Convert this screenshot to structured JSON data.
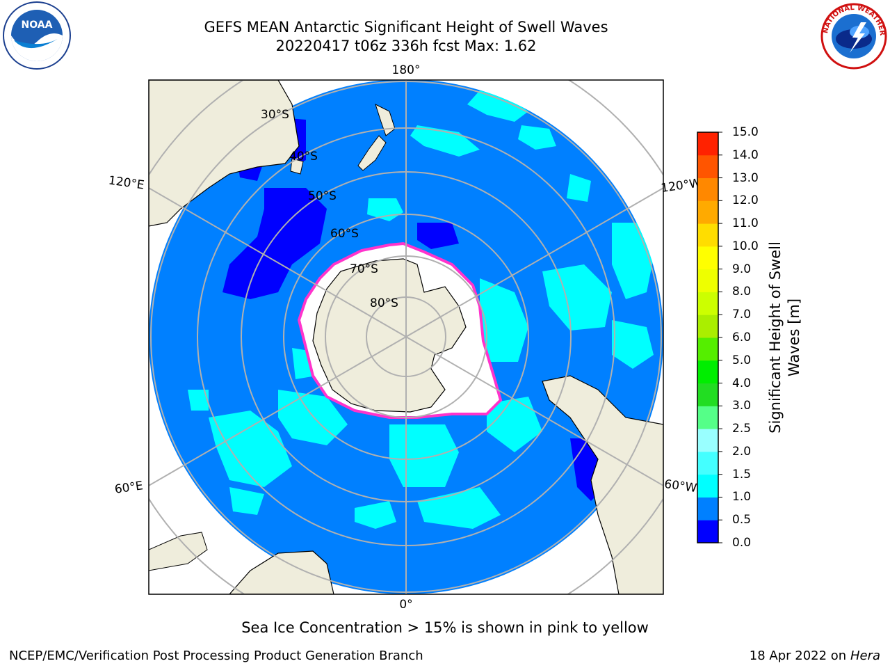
{
  "header": {
    "title_line1": "GEFS MEAN Antarctic Significant Height of Swell Waves",
    "title_line2": "20220417 t06z 336h fcst   Max: 1.62"
  },
  "logos": {
    "noaa_text": "NOAA",
    "nws_text": "NATIONAL WEATHER SERVICE"
  },
  "map": {
    "projection": "south-polar-stereographic",
    "latitude_labels": [
      "30°S",
      "40°S",
      "50°S",
      "60°S",
      "70°S",
      "80°S"
    ],
    "longitude_labels": {
      "top": "180°",
      "bottom": "0°",
      "upper_left": "120°E",
      "lower_left": "60°E",
      "upper_right": "120°W",
      "lower_right": "60°W"
    },
    "colors": {
      "ocean_main": "#0080ff",
      "ocean_low": "#0000ff",
      "ocean_mid": "#00ffff",
      "land": "#efeddc",
      "sea_ice": "#ffffff",
      "ice_edge": "#ff33cc",
      "grid": "#b0b0b0"
    }
  },
  "colorbar": {
    "title": "Significant Height of Swell Waves [m]",
    "ticks": [
      "0.0",
      "0.5",
      "1.0",
      "1.5",
      "2.0",
      "2.5",
      "3.0",
      "4.0",
      "5.0",
      "6.0",
      "7.0",
      "8.0",
      "9.0",
      "10.0",
      "11.0",
      "12.0",
      "13.0",
      "14.0",
      "15.0"
    ],
    "colors": [
      "#0000ff",
      "#0080ff",
      "#00ffff",
      "#44ffff",
      "#99ffff",
      "#55ff88",
      "#22dd22",
      "#00ee00",
      "#55ee00",
      "#aaee00",
      "#ccff00",
      "#eeff00",
      "#ffff00",
      "#ffdd00",
      "#ffaa00",
      "#ff8800",
      "#ff5500",
      "#ff2200"
    ]
  },
  "footer": {
    "note": "Sea Ice Concentration > 15% is shown in pink to yellow",
    "credit": "NCEP/EMC/Verification Post Processing Product Generation Branch",
    "date": "18 Apr 2022 on ",
    "host": "Hera"
  }
}
